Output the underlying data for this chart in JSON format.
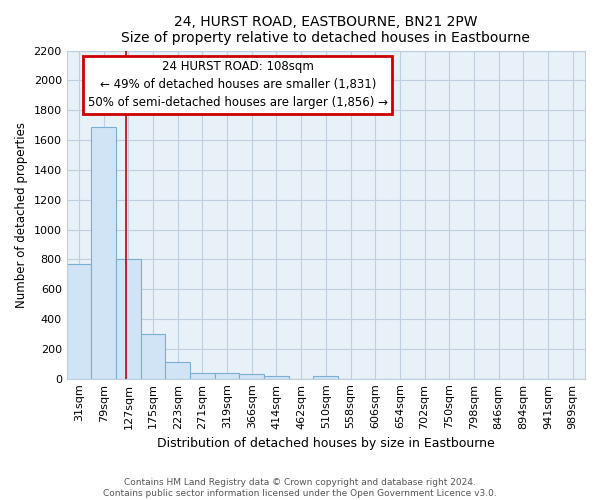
{
  "title": "24, HURST ROAD, EASTBOURNE, BN21 2PW",
  "subtitle": "Size of property relative to detached houses in Eastbourne",
  "xlabel": "Distribution of detached houses by size in Eastbourne",
  "ylabel": "Number of detached properties",
  "bar_labels": [
    "31sqm",
    "79sqm",
    "127sqm",
    "175sqm",
    "223sqm",
    "271sqm",
    "319sqm",
    "366sqm",
    "414sqm",
    "462sqm",
    "510sqm",
    "558sqm",
    "606sqm",
    "654sqm",
    "702sqm",
    "750sqm",
    "798sqm",
    "846sqm",
    "894sqm",
    "941sqm",
    "989sqm"
  ],
  "bar_values": [
    770,
    1690,
    800,
    300,
    115,
    40,
    35,
    30,
    20,
    0,
    20,
    0,
    0,
    0,
    0,
    0,
    0,
    0,
    0,
    0,
    0
  ],
  "bar_fill_color": "#d0e4f5",
  "bar_edge_color": "#7aafd4",
  "vline_x": 1.92,
  "vline_color": "#cc0000",
  "annotation_title": "24 HURST ROAD: 108sqm",
  "annotation_line1": "← 49% of detached houses are smaller (1,831)",
  "annotation_line2": "50% of semi-detached houses are larger (1,856) →",
  "annotation_box_facecolor": "#ffffff",
  "annotation_border_color": "#cc0000",
  "ylim": [
    0,
    2200
  ],
  "yticks": [
    0,
    200,
    400,
    600,
    800,
    1000,
    1200,
    1400,
    1600,
    1800,
    2000,
    2200
  ],
  "grid_color": "#c0cfe0",
  "plot_bg_color": "#e8f0f8",
  "footer_line1": "Contains HM Land Registry data © Crown copyright and database right 2024.",
  "footer_line2": "Contains public sector information licensed under the Open Government Licence v3.0."
}
